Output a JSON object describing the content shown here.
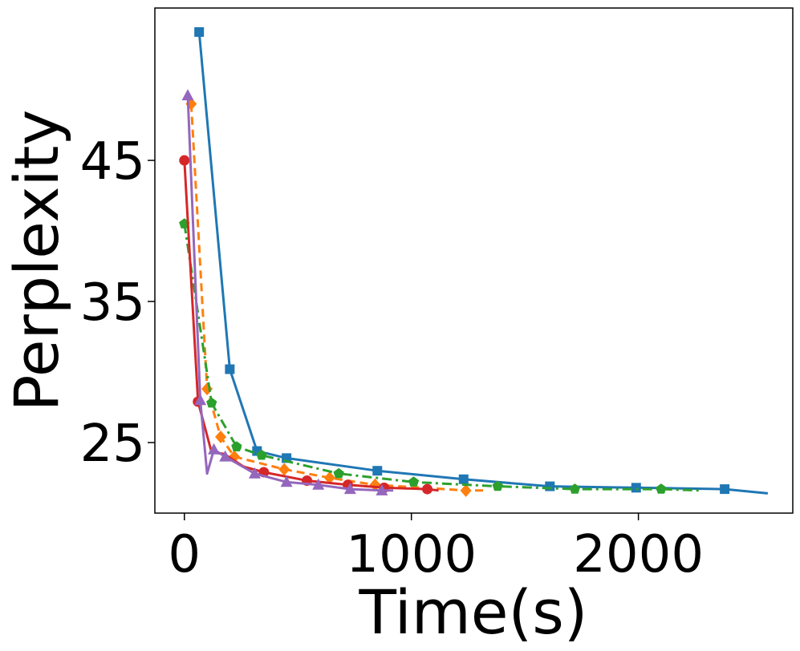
{
  "chart_data": {
    "type": "line",
    "title": "",
    "xlabel": "Time(s)",
    "ylabel": "Perplexity",
    "xlim": [
      -130,
      2680
    ],
    "ylim": [
      20.0,
      55.8
    ],
    "xticks": [
      0,
      1000,
      2000
    ],
    "xtick_labels": [
      "0",
      "1000",
      "2000"
    ],
    "yticks": [
      25,
      35,
      45
    ],
    "ytick_labels": [
      "25",
      "35",
      "45"
    ],
    "grid": false,
    "legend": "none",
    "series": [
      {
        "color": "#1f77b4",
        "marker": "square",
        "dash": "solid",
        "x": [
          65,
          200,
          320,
          450,
          850,
          1230,
          1610,
          1990,
          2380,
          2570
        ],
        "y": [
          54.1,
          30.2,
          24.4,
          23.9,
          23.0,
          22.4,
          21.9,
          21.8,
          21.7,
          21.4
        ],
        "marker_x": [
          65,
          200,
          320,
          450,
          850,
          1230,
          1610,
          1990,
          2380
        ],
        "marker_y": [
          54.1,
          30.2,
          24.4,
          23.9,
          23.0,
          22.4,
          21.9,
          21.8,
          21.7
        ]
      },
      {
        "color": "#ff7f0e",
        "marker": "diamond",
        "dash": "dashed",
        "x": [
          30,
          100,
          160,
          220,
          440,
          640,
          840,
          1050,
          1240,
          1330
        ],
        "y": [
          49.0,
          28.8,
          25.4,
          24.0,
          23.1,
          22.5,
          22.0,
          21.8,
          21.6,
          21.6
        ],
        "marker_x": [
          30,
          100,
          160,
          220,
          440,
          640,
          840,
          1240
        ],
        "marker_y": [
          49.0,
          28.8,
          25.4,
          24.0,
          23.1,
          22.5,
          22.0,
          21.6
        ]
      },
      {
        "color": "#2ca02c",
        "marker": "pentagon",
        "dash": "dashdot",
        "x": [
          0,
          120,
          230,
          340,
          680,
          1010,
          1380,
          1720,
          2100,
          2280
        ],
        "y": [
          40.5,
          27.8,
          24.7,
          24.1,
          22.8,
          22.2,
          21.9,
          21.7,
          21.7,
          21.6
        ],
        "marker_x": [
          0,
          120,
          230,
          340,
          680,
          1010,
          1380,
          1720,
          2100
        ],
        "marker_y": [
          40.5,
          27.8,
          24.7,
          24.1,
          22.8,
          22.2,
          21.9,
          21.7,
          21.7
        ]
      },
      {
        "color": "#d62728",
        "marker": "circle",
        "dash": "solid",
        "x": [
          0,
          60,
          120,
          175,
          260,
          350,
          540,
          720,
          880,
          1070,
          1120
        ],
        "y": [
          45.0,
          27.9,
          24.3,
          24.2,
          23.3,
          22.9,
          22.3,
          22.0,
          21.8,
          21.7,
          21.6
        ],
        "marker_x": [
          0,
          60,
          350,
          540,
          720,
          880,
          1070
        ],
        "marker_y": [
          45.0,
          27.9,
          22.9,
          22.3,
          22.0,
          21.8,
          21.7
        ]
      },
      {
        "color": "#9467bd",
        "marker": "triangle",
        "dash": "solid",
        "x": [
          15,
          70,
          100,
          130,
          180,
          310,
          450,
          590,
          730,
          870,
          920
        ],
        "y": [
          49.6,
          28.0,
          22.8,
          24.5,
          24.0,
          22.8,
          22.2,
          22.0,
          21.7,
          21.6,
          21.6
        ],
        "marker_x": [
          15,
          70,
          130,
          180,
          310,
          450,
          590,
          730,
          870
        ],
        "marker_y": [
          49.6,
          28.0,
          24.5,
          24.0,
          22.8,
          22.2,
          22.0,
          21.7,
          21.6
        ]
      }
    ]
  }
}
